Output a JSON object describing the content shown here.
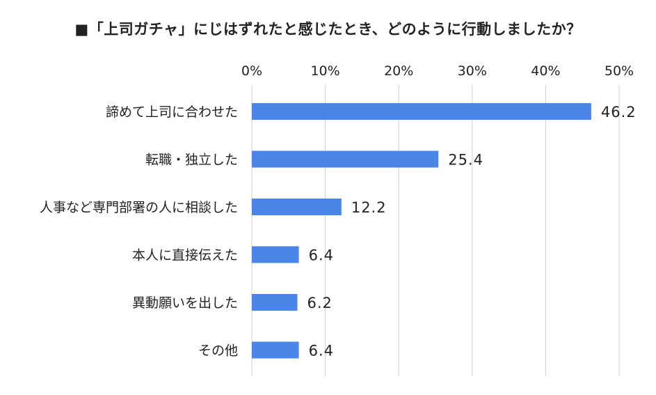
{
  "chart_data": {
    "type": "bar",
    "orientation": "horizontal",
    "title": "■「上司ガチャ」にじはずれたと感じたとき、どのように行動しましたか？",
    "categories": [
      "諦めて上司に合わせた",
      "転職・独立した",
      "人事など専門部署の人に相談した",
      "本人に直接伝えた",
      "異動願いを出した",
      "その他"
    ],
    "values": [
      46.2,
      25.4,
      12.2,
      6.4,
      6.2,
      6.4
    ],
    "value_labels": [
      "46.2",
      "25.4",
      "12.2",
      "6.4",
      "6.2",
      "6.4"
    ],
    "xlim": [
      0,
      50
    ],
    "ticks": [
      0,
      10,
      20,
      30,
      40,
      50
    ],
    "tick_labels": [
      "0%",
      "10%",
      "20%",
      "30%",
      "40%",
      "50%"
    ],
    "axis_position": "top",
    "grid": true,
    "legend": "none",
    "bar_color": "#4a86e8",
    "grid_color": "#d0d0d0"
  }
}
